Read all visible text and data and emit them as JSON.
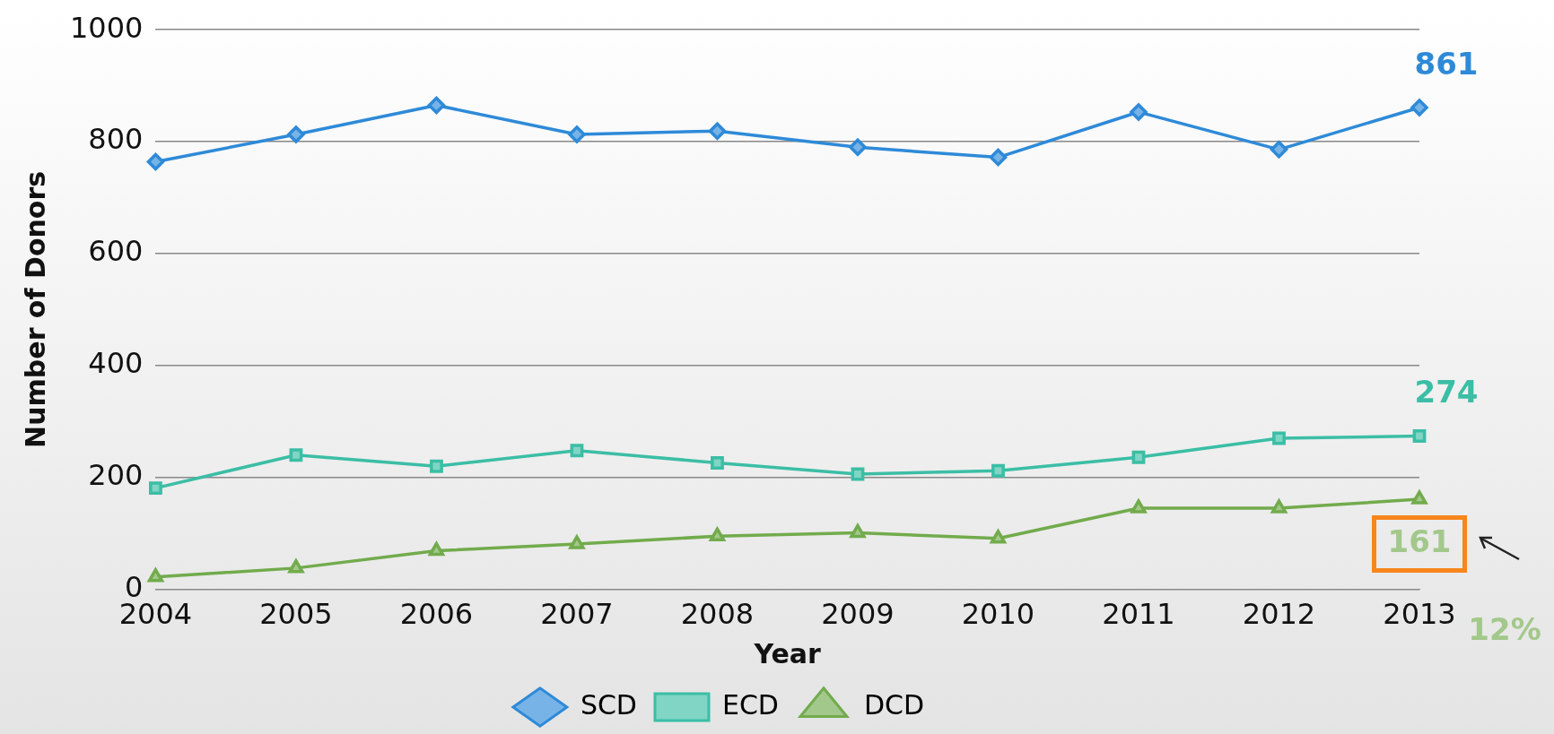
{
  "chart_data": {
    "type": "line",
    "xlabel": "Year",
    "ylabel": "Number of Donors",
    "categories": [
      "2004",
      "2005",
      "2006",
      "2007",
      "2008",
      "2009",
      "2010",
      "2011",
      "2012",
      "2013"
    ],
    "series": [
      {
        "name": "SCD",
        "color": "#2e8ad8",
        "marker": "diamond",
        "values": [
          764,
          813,
          865,
          813,
          819,
          790,
          772,
          853,
          786,
          861
        ]
      },
      {
        "name": "ECD",
        "color": "#3bbea5",
        "marker": "square",
        "values": [
          181,
          240,
          220,
          248,
          226,
          206,
          212,
          236,
          270,
          274
        ]
      },
      {
        "name": "DCD",
        "color": "#72ab4c",
        "marker": "triangle",
        "values": [
          22,
          38,
          69,
          81,
          95,
          101,
          91,
          145,
          145,
          161
        ]
      }
    ],
    "ylim": [
      0,
      1000
    ],
    "yticks": [
      0,
      200,
      400,
      600,
      800,
      1000
    ],
    "grid": "y",
    "legend": "bottom",
    "annotations": [
      {
        "text": "861",
        "x": "2013",
        "y": 861
      },
      {
        "text": "274",
        "x": "2013",
        "y": 274
      },
      {
        "text": "161",
        "x": "2013",
        "y": 161
      },
      "12%"
    ]
  }
}
